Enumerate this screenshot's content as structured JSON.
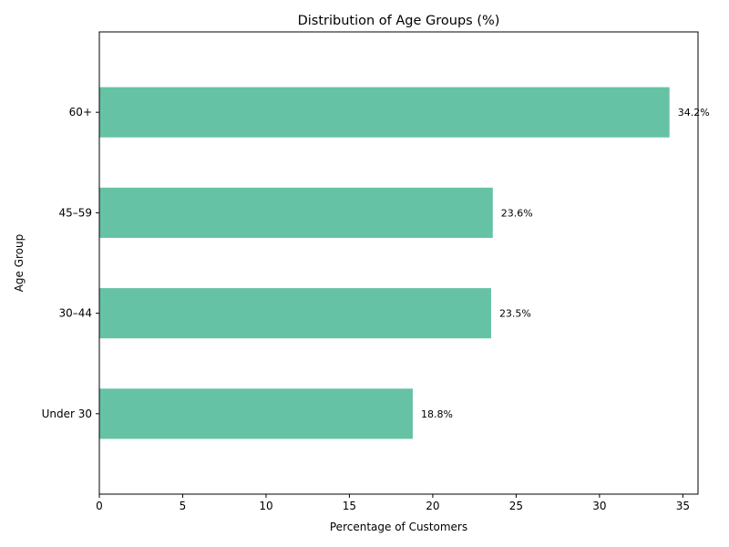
{
  "chart_data": {
    "type": "bar",
    "orientation": "horizontal",
    "title": "Distribution of Age Groups (%)",
    "xlabel": "Percentage of Customers",
    "ylabel": "Age Group",
    "categories": [
      "Under 30",
      "30–44",
      "45–59",
      "60+"
    ],
    "values": [
      18.8,
      23.5,
      23.6,
      34.2
    ],
    "data_labels": [
      "18.8%",
      "23.5%",
      "23.6%",
      "34.2%"
    ],
    "xlim": [
      0,
      35.91
    ],
    "xticks": [
      0,
      5,
      10,
      15,
      20,
      25,
      30,
      35
    ],
    "bar_color": "#66c2a5",
    "grid": false,
    "legend": "none"
  }
}
